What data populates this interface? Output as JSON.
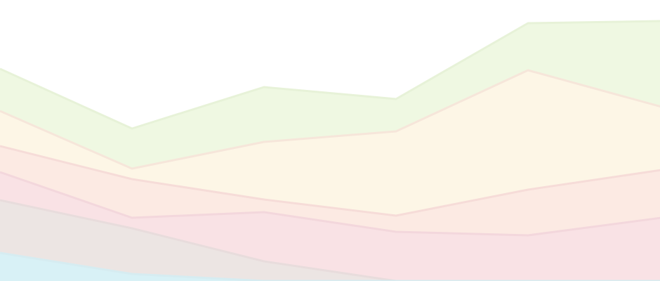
{
  "chart_data": {
    "type": "area",
    "stacked": true,
    "x": [
      0,
      1,
      2,
      3,
      4,
      5
    ],
    "ylim": [
      0,
      400
    ],
    "grid": false,
    "legend": "none",
    "series": [
      {
        "values": [
          40,
          10,
          0,
          0,
          0,
          0
        ],
        "color": "#d8f1f6",
        "stroke": "#d6ecf1"
      },
      {
        "values": [
          75,
          65,
          28,
          0,
          0,
          0
        ],
        "color": "#ece5e3",
        "stroke": "#e8dcdc"
      },
      {
        "values": [
          40,
          15,
          70,
          70,
          65,
          90
        ],
        "color": "#f9e2e5",
        "stroke": "#f3d7dc"
      },
      {
        "values": [
          37,
          55,
          18,
          23,
          65,
          68
        ],
        "color": "#fceae3",
        "stroke": "#f6dcd8"
      },
      {
        "values": [
          50,
          15,
          82,
          120,
          170,
          90
        ],
        "color": "#fdf6e6",
        "stroke": "#f6e6da"
      },
      {
        "values": [
          60,
          57,
          78,
          46,
          67,
          122
        ],
        "color": "#eff8e2",
        "stroke": "#e7f2d8"
      }
    ]
  }
}
